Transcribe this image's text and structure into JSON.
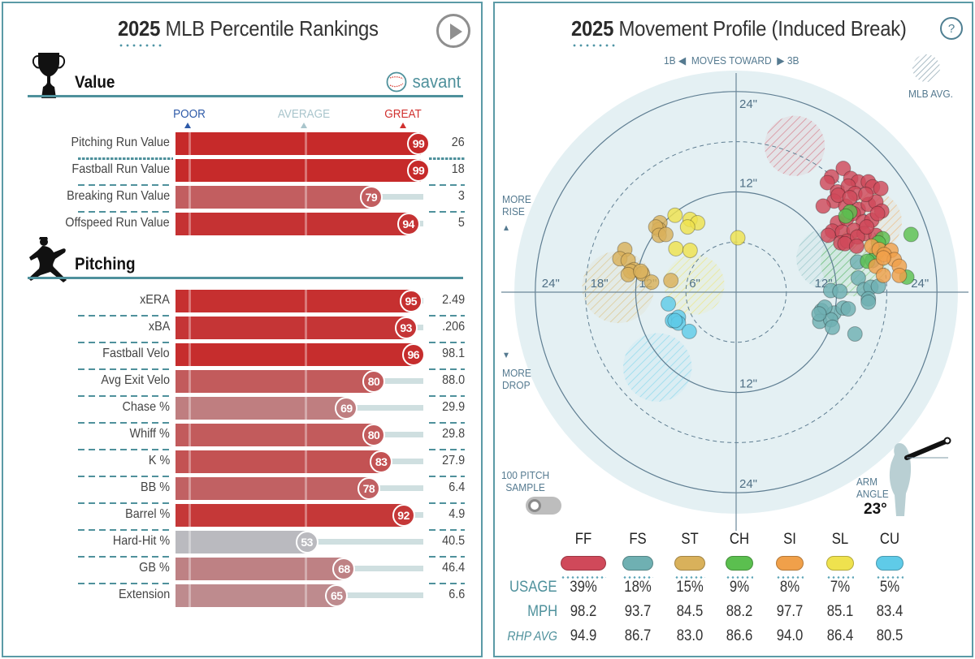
{
  "left": {
    "title_year": "2025",
    "title_rest": " MLB Percentile Rankings",
    "scale": {
      "poor": "POOR",
      "average": "AVERAGE",
      "great": "GREAT"
    },
    "colors": {
      "poor": "#2e5aa8",
      "average": "#a9c5cc",
      "great": "#d1312f"
    },
    "sections": [
      {
        "name": "Value",
        "icon": "trophy-icon",
        "brand": "savant",
        "rows": [
          {
            "label": "Pitching Run Value",
            "pct": 99,
            "value": "26"
          },
          {
            "label": "Fastball Run Value",
            "pct": 99,
            "value": "18"
          },
          {
            "label": "Breaking Run Value",
            "pct": 79,
            "value": "3"
          },
          {
            "label": "Offspeed Run Value",
            "pct": 94,
            "value": "5"
          }
        ]
      },
      {
        "name": "Pitching",
        "icon": "pitcher-icon",
        "rows": [
          {
            "label": "xERA",
            "pct": 95,
            "value": "2.49"
          },
          {
            "label": "xBA",
            "pct": 93,
            "value": ".206"
          },
          {
            "label": "Fastball Velo",
            "pct": 96,
            "value": "98.1"
          },
          {
            "label": "Avg Exit Velo",
            "pct": 80,
            "value": "88.0"
          },
          {
            "label": "Chase %",
            "pct": 69,
            "value": "29.9"
          },
          {
            "label": "Whiff %",
            "pct": 80,
            "value": "29.8"
          },
          {
            "label": "K %",
            "pct": 83,
            "value": "27.9"
          },
          {
            "label": "BB %",
            "pct": 78,
            "value": "6.4"
          },
          {
            "label": "Barrel %",
            "pct": 92,
            "value": "4.9"
          },
          {
            "label": "Hard-Hit %",
            "pct": 53,
            "value": "40.5"
          },
          {
            "label": "GB %",
            "pct": 68,
            "value": "46.4"
          },
          {
            "label": "Extension",
            "pct": 65,
            "value": "6.6"
          }
        ]
      }
    ]
  },
  "right": {
    "title_year": "2025",
    "title_rest": " Movement Profile (Induced Break)",
    "help_label": "?",
    "direction_note": {
      "left": "1B",
      "middle": "MOVES TOWARD",
      "right": "3B"
    },
    "legend_mlb_avg": "MLB AVG.",
    "more_rise": [
      "MORE",
      "RISE"
    ],
    "more_drop": [
      "MORE",
      "DROP"
    ],
    "sample_label": [
      "100 PITCH",
      "SAMPLE"
    ],
    "sample_toggle_on": false,
    "arm_angle_label": [
      "ARM",
      "ANGLE"
    ],
    "arm_angle_value": "23°",
    "row_headers": {
      "usage": "USAGE",
      "mph": "MPH",
      "rhp_avg": "RHP AVG"
    }
  },
  "chart_data": {
    "type": "scatter",
    "title": "2025 Movement Profile (Induced Break)",
    "xlabel": "Horizontal break (in), + toward 3B",
    "ylabel": "Induced vertical break (in), + more rise",
    "axis_range_in": [
      -27,
      27
    ],
    "ring_labels": [
      "6\"",
      "12\"",
      "18\"",
      "24\""
    ],
    "axis_labels": {
      "left": "24\"",
      "left_18": "18\"",
      "left_12": "12\"",
      "left_6": "6\"",
      "top": "24\"",
      "top_12": "12\"",
      "right_12": "12\"",
      "right": "24\"",
      "bottom_12": "12\"",
      "bottom": "24\""
    },
    "pitch_types": [
      {
        "code": "FF",
        "color": "#d0495a",
        "usage": "39%",
        "mph": "98.2",
        "rhp_avg": "94.9",
        "mlb_avg": {
          "x": 7.0,
          "y": 17.5,
          "r": 3.6
        },
        "points": [
          [
            11.4,
            13.8
          ],
          [
            12.8,
            14.8
          ],
          [
            13.7,
            13.6
          ],
          [
            14.6,
            13.2
          ],
          [
            15.8,
            13.2
          ],
          [
            16.3,
            12.6
          ],
          [
            17.3,
            12.4
          ],
          [
            10.9,
            13.1
          ],
          [
            12.1,
            12.0
          ],
          [
            13.4,
            12.7
          ],
          [
            14.2,
            11.8
          ],
          [
            11.7,
            10.9
          ],
          [
            13.1,
            10.3
          ],
          [
            14.6,
            9.9
          ],
          [
            15.8,
            10.5
          ],
          [
            16.7,
            10.8
          ],
          [
            12.1,
            8.3
          ],
          [
            13.2,
            8.8
          ],
          [
            14.0,
            9.4
          ],
          [
            15.2,
            8.4
          ],
          [
            16.2,
            8.6
          ],
          [
            11.5,
            7.3
          ],
          [
            12.7,
            7.2
          ],
          [
            14.1,
            7.4
          ],
          [
            15.3,
            7.0
          ],
          [
            16.7,
            6.8
          ],
          [
            12.5,
            5.9
          ],
          [
            13.3,
            6.1
          ],
          [
            14.5,
            6.6
          ],
          [
            17.4,
            9.7
          ],
          [
            12.2,
            11.6
          ],
          [
            10.4,
            10.3
          ],
          [
            13.6,
            11.3
          ],
          [
            15.5,
            11.7
          ],
          [
            16.9,
            9.4
          ],
          [
            11.0,
            6.8
          ],
          [
            13.0,
            5.8
          ],
          [
            14.4,
            5.5
          ],
          [
            15.6,
            7.8
          ]
        ]
      },
      {
        "code": "FS",
        "color": "#6fb0b2",
        "usage": "18%",
        "mph": "93.7",
        "rhp_avg": "86.7",
        "mlb_avg": {
          "x": 10.8,
          "y": 4.0,
          "r": 3.6
        },
        "points": [
          [
            11.3,
            0.2
          ],
          [
            12.4,
            0.1
          ],
          [
            14.6,
            1.7
          ],
          [
            15.3,
            0.3
          ],
          [
            16.1,
            0.6
          ],
          [
            17.0,
            0.7
          ],
          [
            15.8,
            -0.8
          ],
          [
            10.2,
            -2.2
          ],
          [
            11.7,
            -2.5
          ],
          [
            12.8,
            -1.9
          ],
          [
            13.4,
            -2.0
          ],
          [
            15.8,
            -1.2
          ],
          [
            10.0,
            -3.5
          ],
          [
            11.3,
            -3.3
          ],
          [
            11.5,
            -4.2
          ],
          [
            14.2,
            -5.0
          ],
          [
            14.5,
            3.6
          ],
          [
            16.3,
            3.8
          ],
          [
            10.6,
            -1.8
          ],
          [
            9.9,
            -2.6
          ]
        ]
      },
      {
        "code": "ST",
        "color": "#d9b15b",
        "usage": "15%",
        "mph": "84.5",
        "rhp_avg": "83.0",
        "mlb_avg": {
          "x": -14.1,
          "y": 0.6,
          "r": 4.3
        },
        "points": [
          [
            -9.1,
            8.3
          ],
          [
            -9.2,
            7.5
          ],
          [
            -9.6,
            7.8
          ],
          [
            -9.2,
            6.8
          ],
          [
            -8.4,
            6.9
          ],
          [
            -13.3,
            5.1
          ],
          [
            -13.9,
            4.0
          ],
          [
            -12.9,
            3.8
          ],
          [
            -12.2,
            2.7
          ],
          [
            -12.6,
            2.5
          ],
          [
            -11.2,
            2.2
          ],
          [
            -12.9,
            2.1
          ],
          [
            -11.4,
            2.5
          ],
          [
            -10.1,
            1.2
          ],
          [
            -7.8,
            1.4
          ]
        ]
      },
      {
        "code": "CH",
        "color": "#5bbf4f",
        "usage": "9%",
        "mph": "88.2",
        "rhp_avg": "86.6",
        "mlb_avg": {
          "x": 14.2,
          "y": 3.6,
          "r": 4.1
        },
        "points": [
          [
            13.6,
            9.6
          ],
          [
            13.1,
            9.1
          ],
          [
            17.5,
            6.4
          ],
          [
            17.0,
            5.9
          ],
          [
            16.8,
            4.7
          ],
          [
            15.7,
            3.7
          ],
          [
            20.9,
            6.9
          ],
          [
            20.4,
            1.8
          ]
        ]
      },
      {
        "code": "SI",
        "color": "#f0a04a",
        "usage": "8%",
        "mph": "97.7",
        "rhp_avg": "94.0",
        "mlb_avg": {
          "x": 16.1,
          "y": 8.4,
          "r": 3.7
        },
        "points": [
          [
            16.2,
            5.5
          ],
          [
            17.1,
            5.1
          ],
          [
            18.5,
            5.0
          ],
          [
            17.7,
            4.5
          ],
          [
            18.9,
            3.9
          ],
          [
            19.5,
            3.1
          ],
          [
            16.7,
            3.1
          ],
          [
            19.5,
            2.0
          ],
          [
            17.6,
            2.0
          ],
          [
            17.6,
            4.1
          ]
        ]
      },
      {
        "code": "SL",
        "color": "#efe24e",
        "usage": "7%",
        "mph": "85.1",
        "rhp_avg": "86.4",
        "mlb_avg": {
          "x": -5.0,
          "y": 0.9,
          "r": 3.6
        },
        "points": [
          [
            -7.3,
            9.2
          ],
          [
            -5.5,
            8.7
          ],
          [
            -4.6,
            8.3
          ],
          [
            -5.8,
            7.8
          ],
          [
            -7.2,
            5.2
          ],
          [
            -5.5,
            5.0
          ],
          [
            0.2,
            6.5
          ]
        ]
      },
      {
        "code": "CU",
        "color": "#5fcbe8",
        "usage": "5%",
        "mph": "83.4",
        "rhp_avg": "80.5",
        "mlb_avg": {
          "x": -9.4,
          "y": -9.0,
          "r": 4.1
        },
        "points": [
          [
            -8.1,
            -1.4
          ],
          [
            -7.6,
            -3.4
          ],
          [
            -6.9,
            -3.0
          ],
          [
            -6.9,
            -3.7
          ],
          [
            -5.6,
            -4.7
          ],
          [
            -7.3,
            -3.4
          ]
        ]
      }
    ]
  }
}
